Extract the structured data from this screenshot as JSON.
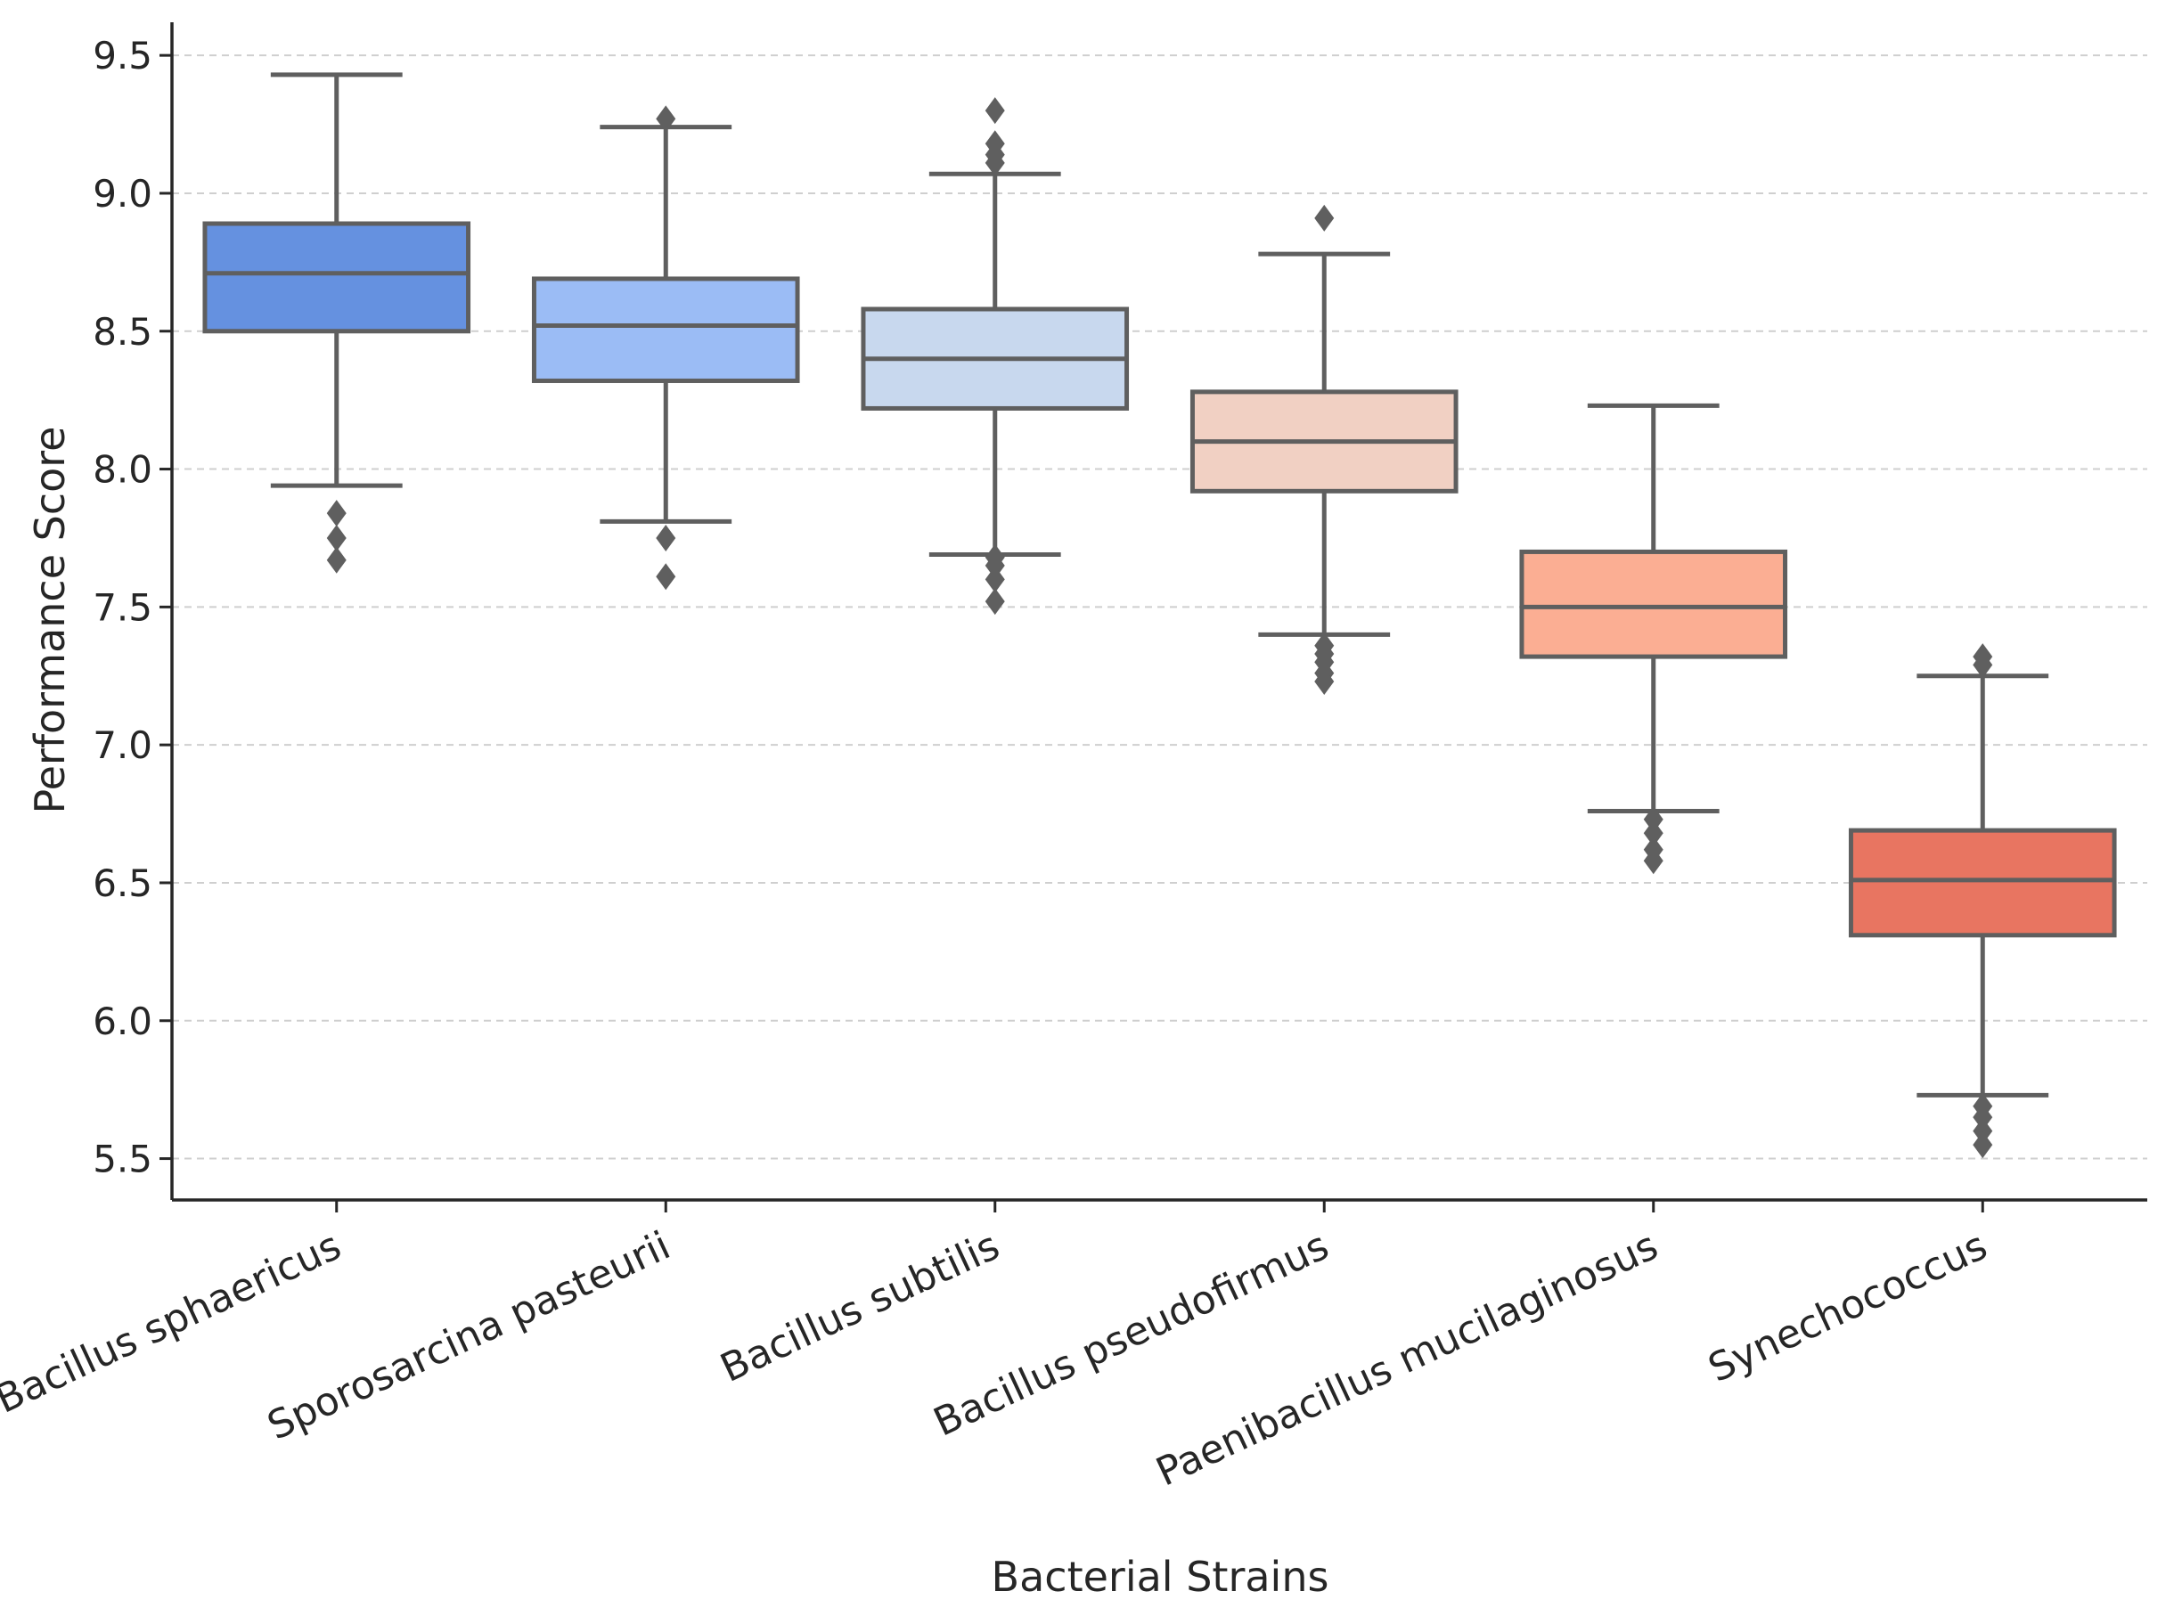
{
  "chart_data": {
    "type": "box",
    "title": "",
    "xlabel": "Bacterial Strains",
    "ylabel": "Performance Score",
    "ylim": [
      5.35,
      9.62
    ],
    "yticks": [
      "5.5",
      "6.0",
      "6.5",
      "7.0",
      "7.5",
      "8.0",
      "8.5",
      "9.0",
      "9.5"
    ],
    "grid": "horizontal dashed",
    "categories": [
      "Bacillus sphaericus",
      "Sporosarcina pasteurii",
      "Bacillus subtilis",
      "Bacillus pseudofirmus",
      "Paenibacillus mucilaginosus",
      "Synechococcus"
    ],
    "boxes": [
      {
        "name": "Bacillus sphaericus",
        "whisker_low": 7.94,
        "q1": 8.5,
        "median": 8.71,
        "q3": 8.89,
        "whisker_high": 9.43,
        "outliers": [
          7.84,
          7.75,
          7.67
        ],
        "color": "#6591e0"
      },
      {
        "name": "Sporosarcina pasteurii",
        "whisker_low": 7.81,
        "q1": 8.32,
        "median": 8.52,
        "q3": 8.69,
        "whisker_high": 9.24,
        "outliers": [
          9.27,
          7.75,
          7.61
        ],
        "color": "#9bbcf5"
      },
      {
        "name": "Bacillus subtilis",
        "whisker_low": 7.69,
        "q1": 8.22,
        "median": 8.4,
        "q3": 8.58,
        "whisker_high": 9.07,
        "outliers": [
          9.3,
          9.18,
          9.14,
          9.11,
          7.68,
          7.65,
          7.6,
          7.52
        ],
        "color": "#c8d8ee"
      },
      {
        "name": "Bacillus pseudofirmus",
        "whisker_low": 7.4,
        "q1": 7.92,
        "median": 8.1,
        "q3": 8.28,
        "whisker_high": 8.78,
        "outliers": [
          8.91,
          7.36,
          7.33,
          7.3,
          7.26,
          7.23
        ],
        "color": "#f1d0c3"
      },
      {
        "name": "Paenibacillus mucilaginosus",
        "whisker_low": 6.76,
        "q1": 7.32,
        "median": 7.5,
        "q3": 7.7,
        "whisker_high": 8.23,
        "outliers": [
          6.73,
          6.68,
          6.62,
          6.58
        ],
        "color": "#fbae93"
      },
      {
        "name": "Synechococcus",
        "whisker_low": 5.73,
        "q1": 6.31,
        "median": 6.51,
        "q3": 6.69,
        "whisker_high": 7.25,
        "outliers": [
          7.32,
          7.29,
          5.69,
          5.65,
          5.6,
          5.55
        ],
        "color": "#e87561"
      }
    ]
  }
}
